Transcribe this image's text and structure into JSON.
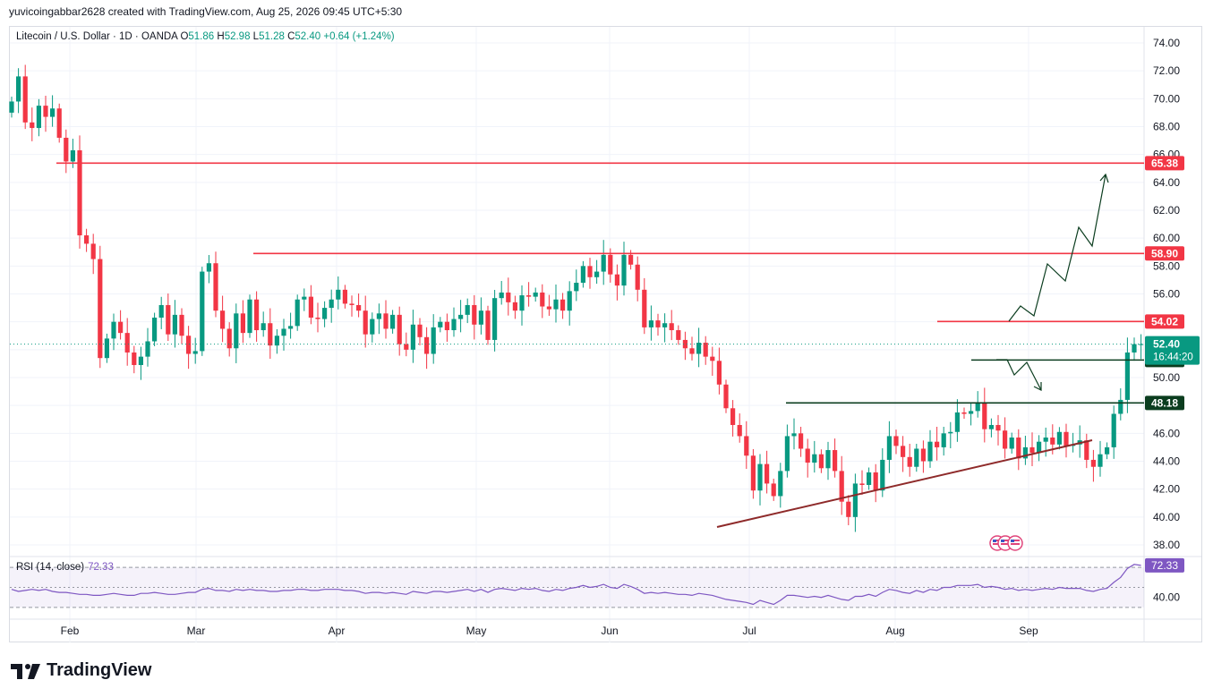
{
  "header": {
    "text": "yuvicoingabbar2628 created with TradingView.com, Aug 25, 2026 09:45 UTC+5:30"
  },
  "legend": {
    "symbol": "Litecoin / U.S. Dollar · 1D · OANDA",
    "o_label": "O",
    "o": "51.86",
    "h_label": "H",
    "h": "52.98",
    "l_label": "L",
    "l": "51.28",
    "c_label": "C",
    "c": "52.40",
    "change": "+0.64 (+1.24%)"
  },
  "rsi_legend": {
    "label": "RSI (14, close)",
    "value": "72.33"
  },
  "brand": {
    "name": "TradingView"
  },
  "colors": {
    "up": "#089981",
    "down": "#f23645",
    "resistance": "#f23645",
    "support": "#0b3d1f",
    "trend": "#8e2a2a",
    "rsi": "#7e57c2"
  },
  "chart_data": {
    "type": "candlestick",
    "ylim": [
      38,
      74
    ],
    "y_ticks": [
      "74.00",
      "72.00",
      "70.00",
      "68.00",
      "66.00",
      "64.00",
      "62.00",
      "60.00",
      "58.00",
      "56.00",
      "54.00",
      "52.00",
      "50.00",
      "48.00",
      "46.00",
      "44.00",
      "42.00",
      "40.00",
      "38.00"
    ],
    "x_ticks": [
      "Feb",
      "Mar",
      "Apr",
      "May",
      "Jun",
      "Jul",
      "Aug",
      "Sep"
    ],
    "closes": [
      69.8,
      71.6,
      68.3,
      67.9,
      69.5,
      68.7,
      69.3,
      67.2,
      65.5,
      66.3,
      60.2,
      59.6,
      58.5,
      51.4,
      52.8,
      54.0,
      53.2,
      51.8,
      50.9,
      51.5,
      52.6,
      54.3,
      55.2,
      53.1,
      54.5,
      53.0,
      51.7,
      51.9,
      57.6,
      58.2,
      54.8,
      53.5,
      52.1,
      54.6,
      53.2,
      55.6,
      53.4,
      53.9,
      52.3,
      53.0,
      53.5,
      53.7,
      55.6,
      55.8,
      54.3,
      54.2,
      55.0,
      55.6,
      56.3,
      55.3,
      55.2,
      54.8,
      53.1,
      54.2,
      54.6,
      53.5,
      54.5,
      52.4,
      52.0,
      53.8,
      52.9,
      51.7,
      53.6,
      54.0,
      53.4,
      54.2,
      54.5,
      55.2,
      53.8,
      54.8,
      52.7,
      55.7,
      56.1,
      55.4,
      54.8,
      55.9,
      55.8,
      56.1,
      55.1,
      54.9,
      55.6,
      54.8,
      56.2,
      56.8,
      58.0,
      57.2,
      57.6,
      58.8,
      57.4,
      56.6,
      58.8,
      58.1,
      56.3,
      53.6,
      54.1,
      53.6,
      53.9,
      53.4,
      52.7,
      52.1,
      51.7,
      52.5,
      51.5,
      51.2,
      49.5,
      47.8,
      46.6,
      45.8,
      44.4,
      41.9,
      43.8,
      42.4,
      41.5,
      43.3,
      45.8,
      46.0,
      44.9,
      43.9,
      44.5,
      43.5,
      44.8,
      43.3,
      41.1,
      40.0,
      42.4,
      42.3,
      43.2,
      41.9,
      44.1,
      45.8,
      45.1,
      44.3,
      43.6,
      44.9,
      44.0,
      45.4,
      45.0,
      46.0,
      46.1,
      47.5,
      47.4,
      47.6,
      48.2,
      46.3,
      46.6,
      46.2,
      44.9,
      45.7,
      44.2,
      45.0,
      44.6,
      45.4,
      45.7,
      45.2,
      46.1,
      45.1,
      45.2,
      45.5,
      44.1,
      43.6,
      44.5,
      45.0,
      47.4,
      48.4,
      51.8,
      52.4,
      52.4
    ],
    "levels": [
      {
        "value": "65.38",
        "kind": "resistance"
      },
      {
        "value": "58.90",
        "kind": "resistance"
      },
      {
        "value": "54.02",
        "kind": "resistance"
      },
      {
        "value": "51.26",
        "kind": "support"
      },
      {
        "value": "48.18",
        "kind": "support"
      }
    ],
    "last_price": "52.40",
    "countdown": "16:44:20",
    "rsi": {
      "ylim": [
        20,
        80
      ],
      "tick": "40.00",
      "last": "72.33",
      "values": [
        48,
        46,
        47,
        48,
        47,
        48,
        46,
        45,
        45,
        44,
        43,
        43,
        42,
        42,
        43,
        44,
        43,
        42,
        42,
        44,
        44,
        45,
        44,
        43,
        43,
        44,
        45,
        45,
        48,
        49,
        47,
        47,
        46,
        48,
        47,
        48,
        47,
        47,
        46,
        46,
        47,
        47,
        48,
        48,
        47,
        47,
        48,
        48,
        48,
        47,
        47,
        46,
        44,
        45,
        45,
        44,
        45,
        44,
        43,
        46,
        45,
        44,
        46,
        46,
        45,
        46,
        47,
        48,
        46,
        48,
        45,
        48,
        49,
        48,
        47,
        49,
        48,
        49,
        47,
        46,
        48,
        47,
        49,
        50,
        52,
        50,
        51,
        53,
        50,
        49,
        53,
        51,
        48,
        44,
        45,
        44,
        45,
        44,
        43,
        43,
        42,
        44,
        43,
        42,
        40,
        38,
        37,
        36,
        35,
        33,
        37,
        35,
        33,
        37,
        42,
        42,
        41,
        40,
        41,
        40,
        42,
        40,
        38,
        37,
        41,
        41,
        43,
        41,
        45,
        48,
        47,
        45,
        44,
        47,
        45,
        48,
        47,
        50,
        50,
        52,
        52,
        52,
        53,
        50,
        51,
        50,
        48,
        49,
        47,
        48,
        47,
        48,
        49,
        48,
        50,
        49,
        49,
        49,
        47,
        46,
        48,
        49,
        55,
        60,
        69,
        73,
        72
      ]
    }
  }
}
